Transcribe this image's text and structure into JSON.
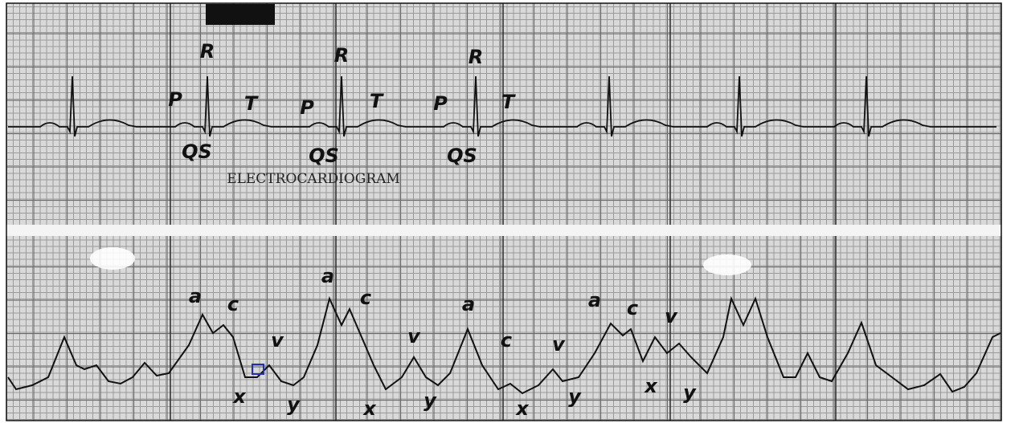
{
  "title": "ELECTROCARDIOGRAM",
  "ecg_labels": [
    "R",
    "R",
    "R",
    "P",
    "T",
    "P",
    "T",
    "P",
    "T",
    "QS",
    "QS",
    "QS"
  ],
  "pressure_labels": [
    "a",
    "c",
    "a",
    "c",
    "a",
    "a",
    "c",
    "v",
    "v",
    "v",
    "c",
    "v",
    "x",
    "y",
    "x",
    "y",
    "x",
    "y",
    "x",
    "y"
  ]
}
